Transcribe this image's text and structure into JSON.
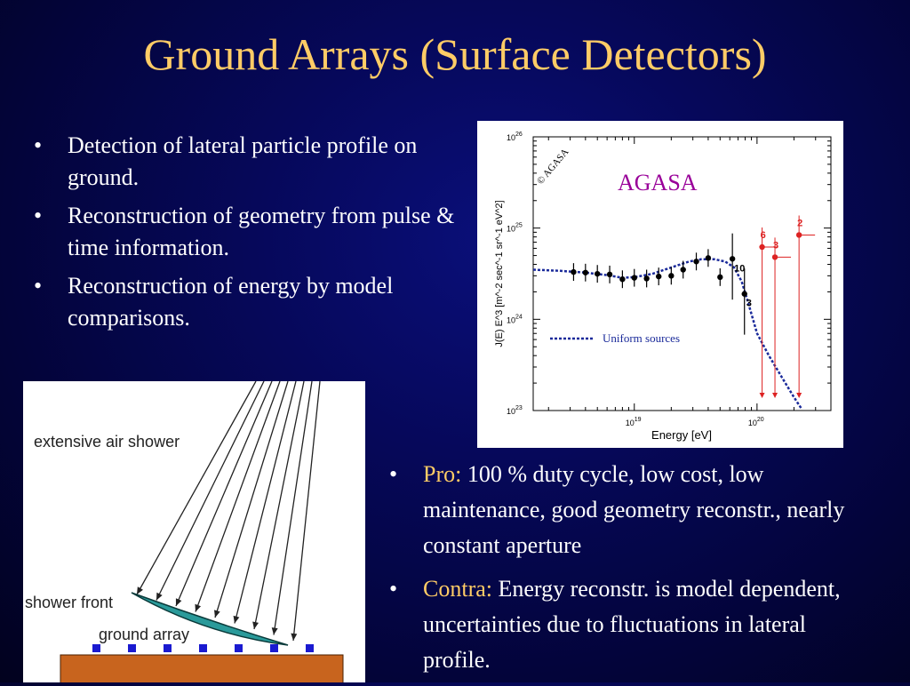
{
  "slide": {
    "title": "Ground Arrays (Surface Detectors)"
  },
  "left_bullets": [
    "Detection of  lateral particle profile on ground.",
    "Reconstruction of geometry from pulse & time information.",
    "Reconstruction of energy by model comparisons."
  ],
  "right_bullets": [
    {
      "label": "Pro:",
      "text": "100 % duty cycle, low cost, low maintenance, good  geometry reconstr., nearly constant aperture"
    },
    {
      "label": "Contra:",
      "text": "Energy reconstr. is model dependent, uncertainties due to fluctuations in lateral profile."
    }
  ],
  "colors": {
    "title": "#ffcc66",
    "keyword": "#ffcc66",
    "text": "#ffffff",
    "agasa_label": "#990099",
    "black_points": "#000000",
    "red_points": "#dd2222",
    "model_curve": "#1a2a9a",
    "shower_front": "#2a9a9a",
    "detector": "#1a1ad0",
    "ground": "#c8641e"
  },
  "chart_data": {
    "type": "scatter",
    "title": "AGASA",
    "watermark": "© AGASA",
    "xlabel": "Energy [eV]",
    "ylabel": "J(E) E^3 [m^-2 sec^-1 sr^-1 eV^2]",
    "log_x": true,
    "log_y": true,
    "x_tick_labels": [
      "10^19",
      "10^20"
    ],
    "y_tick_labels": [
      "10^23",
      "10^24",
      "10^25",
      "10^26"
    ],
    "xlim": [
      1.5e+18,
      4e+20
    ],
    "ylim": [
      1e+23,
      1e+26
    ],
    "legend": {
      "label": "Uniform sources",
      "placement": "lower-middle"
    },
    "series": [
      {
        "color": "black",
        "points": [
          {
            "x": 3.2e+18,
            "y": 3.3e+24
          },
          {
            "x": 4e+18,
            "y": 3.25e+24
          },
          {
            "x": 5e+18,
            "y": 3.15e+24
          },
          {
            "x": 6.3e+18,
            "y": 3.1e+24
          },
          {
            "x": 8e+18,
            "y": 2.75e+24
          },
          {
            "x": 1e+19,
            "y": 2.85e+24
          },
          {
            "x": 1.26e+19,
            "y": 2.8e+24
          },
          {
            "x": 1.58e+19,
            "y": 2.95e+24
          },
          {
            "x": 2e+19,
            "y": 3e+24
          },
          {
            "x": 2.5e+19,
            "y": 3.5e+24
          },
          {
            "x": 3.2e+19,
            "y": 4.3e+24
          },
          {
            "x": 4e+19,
            "y": 4.7e+24
          },
          {
            "x": 5e+19,
            "y": 2.9e+24
          },
          {
            "x": 6.3e+19,
            "y": 4.6e+24,
            "label": "10"
          },
          {
            "x": 7.9e+19,
            "y": 1.9e+24,
            "label": "3"
          }
        ]
      },
      {
        "color": "red",
        "points": [
          {
            "x": 1.1e+20,
            "y": 6.2e+24,
            "label": "6"
          },
          {
            "x": 1.4e+20,
            "y": 4.8e+24,
            "label": "3"
          },
          {
            "x": 2.2e+20,
            "y": 8.4e+24,
            "label": "2"
          }
        ]
      }
    ]
  },
  "diagram": {
    "shower_label": "extensive air shower",
    "front_label": "shower front",
    "array_label": "ground array"
  }
}
